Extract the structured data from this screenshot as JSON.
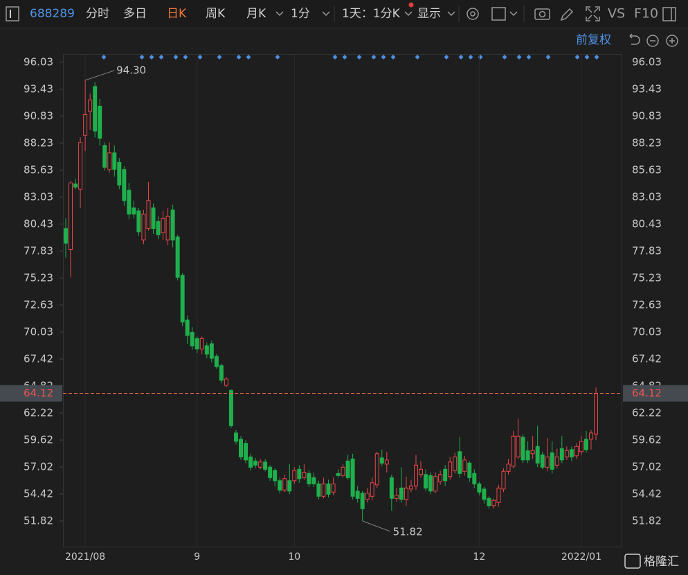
{
  "toolbar": {
    "code": "688289",
    "tabs": [
      "分时",
      "多日",
      "日K",
      "周K",
      "月K",
      "1分"
    ],
    "period": "1天：1分K",
    "display": "显示",
    "vs": "VS",
    "f10": "F10",
    "adjust": "前复权"
  },
  "logo": "格隆汇",
  "chart_data": {
    "type": "candlestick",
    "categories": [
      null,
      null,
      null,
      null,
      "2021/08",
      null,
      null,
      null,
      null,
      null,
      null,
      null,
      null,
      null,
      null,
      null,
      null,
      null,
      null,
      null,
      null,
      null,
      null,
      null,
      null,
      null,
      null,
      "9",
      null,
      null,
      null,
      null,
      null,
      null,
      null,
      null,
      null,
      null,
      null,
      null,
      null,
      null,
      null,
      null,
      null,
      null,
      null,
      "10",
      null,
      null,
      null,
      null,
      null,
      null,
      null,
      null,
      null,
      null,
      null,
      null,
      null,
      null,
      null,
      null,
      null,
      null,
      null,
      null,
      null,
      null,
      null,
      null,
      null,
      null,
      null,
      null,
      null,
      null,
      null,
      null,
      null,
      null,
      null,
      null,
      null,
      "12",
      null,
      null,
      null,
      null,
      null,
      null,
      null,
      null,
      null,
      null,
      null,
      null,
      null,
      null,
      null,
      null,
      null,
      null,
      null,
      null,
      "2022/01",
      null,
      null,
      null
    ],
    "open": [
      80.0,
      78.0,
      84.3,
      83.8,
      89.0,
      91.3,
      93.7,
      91.8,
      88.0,
      85.7,
      87.3,
      86.4,
      85.7,
      83.7,
      82.0,
      81.7,
      78.9,
      80.0,
      82.0,
      80.7,
      79.6,
      78.9,
      81.8,
      79.2,
      75.5,
      71.2,
      70.0,
      69.4,
      68.4,
      68.7,
      68.9,
      67.7,
      66.8,
      64.9,
      64.4,
      60.3,
      59.7,
      59.3,
      58.0,
      57.6,
      57.0,
      57.5,
      57.0,
      56.7,
      55.7,
      54.8,
      55.7,
      55.7,
      56.8,
      56.0,
      56.4,
      56.0,
      55.4,
      54.2,
      55.4,
      54.6,
      56.4,
      56.2,
      57.6,
      57.8,
      54.7,
      54.5,
      53.9,
      54.2,
      55.3,
      57.9,
      57.3,
      56.0,
      54.0,
      55.0,
      53.9,
      54.9,
      55.2,
      56.3,
      56.3,
      56.2,
      54.7,
      55.6,
      56.8,
      56.1,
      56.7,
      58.5,
      56.6,
      57.4,
      56.4,
      55.4,
      54.9,
      54.0,
      53.3,
      53.6,
      54.9,
      56.6,
      57.1,
      58.0,
      59.9,
      58.6,
      58.3,
      59.0,
      58.2,
      57.0,
      58.4,
      57.2,
      58.8,
      58.0,
      58.7,
      58.1,
      58.5,
      59.7,
      59.7,
      60.2
    ],
    "high": [
      81.0,
      84.6,
      84.8,
      88.8,
      94.3,
      93.0,
      94.1,
      92.5,
      88.3,
      88.3,
      88.0,
      86.8,
      86.0,
      84.4,
      82.7,
      82.0,
      81.8,
      84.5,
      82.4,
      81.2,
      81.7,
      82.0,
      82.3,
      79.4,
      75.7,
      71.6,
      70.5,
      69.6,
      69.6,
      69.0,
      69.2,
      67.9,
      67.0,
      65.7,
      64.5,
      60.6,
      60.0,
      59.6,
      58.3,
      57.9,
      57.8,
      57.8,
      57.2,
      56.9,
      56.0,
      56.3,
      57.3,
      57.0,
      57.2,
      57.3,
      56.7,
      56.5,
      55.7,
      56.0,
      55.8,
      56.0,
      56.8,
      57.3,
      58.2,
      58.3,
      55.2,
      54.7,
      55.0,
      56.0,
      58.5,
      58.7,
      58.5,
      56.3,
      55.0,
      57.0,
      56.1,
      55.8,
      58.2,
      57.6,
      56.8,
      56.5,
      56.5,
      56.7,
      57.2,
      58.0,
      58.4,
      59.9,
      58.1,
      57.6,
      56.8,
      55.6,
      55.1,
      54.2,
      54.0,
      55.3,
      56.9,
      57.8,
      60.5,
      61.7,
      60.2,
      59.5,
      60.0,
      61.0,
      58.5,
      59.8,
      59.5,
      58.8,
      60.0,
      59.0,
      59.0,
      59.3,
      60.0,
      60.5,
      60.6,
      64.7
    ],
    "low": [
      77.2,
      75.3,
      83.8,
      82.0,
      87.5,
      89.5,
      88.8,
      88.0,
      85.6,
      85.4,
      85.0,
      83.8,
      82.2,
      80.9,
      81.0,
      79.3,
      78.5,
      79.8,
      79.5,
      79.0,
      78.9,
      78.4,
      78.2,
      75.0,
      70.6,
      68.9,
      68.3,
      68.0,
      67.9,
      67.5,
      67.1,
      66.5,
      65.1,
      64.7,
      60.8,
      59.2,
      57.7,
      57.4,
      56.7,
      56.9,
      56.8,
      56.6,
      55.7,
      55.2,
      54.5,
      54.6,
      54.4,
      55.4,
      55.5,
      55.8,
      55.1,
      55.1,
      53.9,
      54.0,
      54.1,
      54.3,
      56.0,
      56.0,
      55.8,
      53.9,
      53.6,
      51.82,
      53.6,
      53.8,
      55.0,
      57.1,
      56.5,
      52.8,
      53.7,
      53.6,
      53.3,
      54.6,
      54.8,
      56.0,
      54.7,
      54.4,
      54.5,
      55.3,
      55.2,
      55.8,
      56.4,
      56.0,
      56.2,
      55.6,
      55.0,
      54.3,
      53.5,
      53.0,
      53.0,
      53.2,
      54.6,
      56.3,
      56.9,
      57.8,
      57.4,
      57.4,
      57.8,
      57.0,
      56.8,
      56.6,
      56.4,
      56.9,
      57.4,
      57.7,
      57.6,
      57.8,
      58.2,
      58.4,
      58.7,
      59.6
    ],
    "close": [
      78.6,
      84.4,
      84.0,
      88.3,
      91.0,
      92.4,
      89.4,
      88.7,
      85.9,
      87.3,
      85.7,
      84.2,
      82.7,
      81.4,
      81.4,
      79.7,
      81.4,
      82.7,
      80.0,
      79.4,
      81.0,
      81.2,
      78.9,
      75.3,
      71.0,
      69.7,
      68.7,
      68.4,
      69.4,
      67.9,
      67.5,
      66.7,
      65.4,
      65.5,
      61.0,
      59.5,
      58.0,
      57.7,
      57.0,
      57.2,
      57.5,
      56.8,
      56.0,
      55.7,
      54.8,
      55.9,
      54.7,
      56.7,
      55.9,
      56.5,
      55.4,
      55.4,
      54.2,
      55.4,
      54.4,
      55.4,
      56.2,
      57.0,
      56.0,
      54.2,
      54.0,
      53.0,
      54.5,
      55.5,
      58.3,
      57.4,
      57.7,
      54.0,
      54.3,
      53.9,
      55.0,
      55.2,
      57.2,
      56.8,
      55.0,
      54.7,
      56.1,
      56.3,
      55.7,
      57.5,
      58.0,
      56.4,
      57.7,
      56.0,
      55.4,
      54.6,
      53.9,
      53.3,
      53.8,
      55.0,
      56.6,
      57.3,
      60.0,
      60.0,
      57.7,
      57.7,
      58.6,
      57.4,
      57.0,
      58.0,
      56.8,
      58.0,
      57.7,
      58.6,
      58.0,
      59.0,
      59.5,
      58.7,
      60.3,
      64.12
    ],
    "up_color": "#e8484a",
    "down_color": "#1fb04d",
    "ylim": [
      49.35,
      96.83
    ],
    "yticks": [
      96.03,
      93.43,
      90.83,
      88.23,
      85.63,
      83.03,
      80.43,
      77.83,
      75.23,
      72.63,
      70.03,
      67.42,
      64.82,
      62.22,
      59.62,
      57.02,
      54.42,
      51.82
    ],
    "last_price": 64.12,
    "max_label": "94.30",
    "min_label": "51.82"
  }
}
